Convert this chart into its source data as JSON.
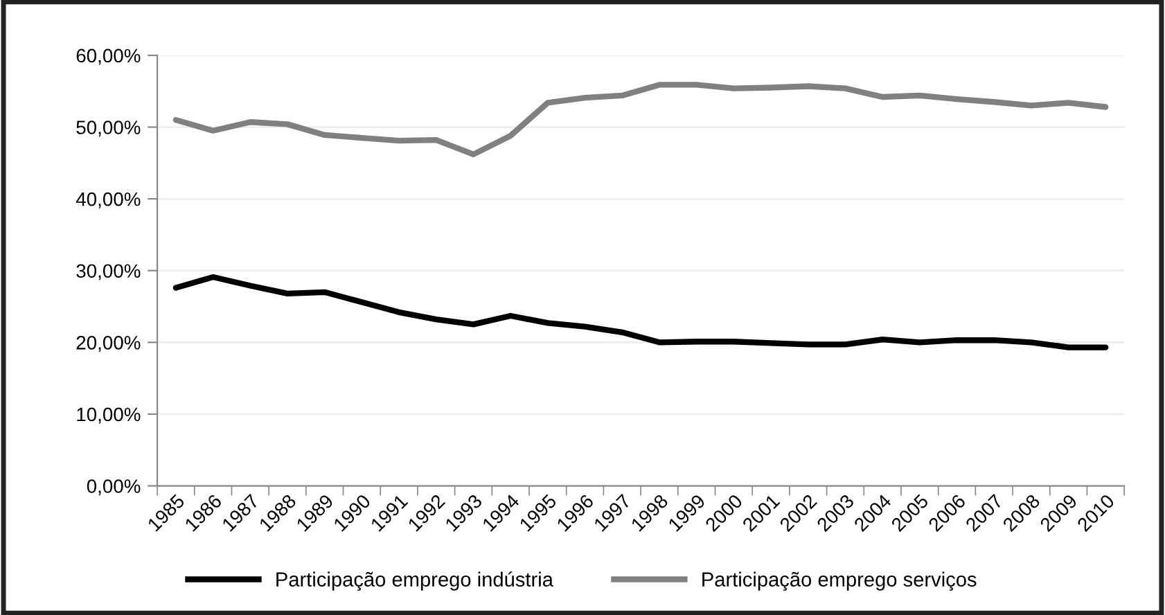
{
  "chart_data": {
    "type": "line",
    "categories": [
      "1985",
      "1986",
      "1987",
      "1988",
      "1989",
      "1990",
      "1991",
      "1992",
      "1993",
      "1994",
      "1995",
      "1996",
      "1997",
      "1998",
      "1999",
      "2000",
      "2001",
      "2002",
      "2003",
      "2004",
      "2005",
      "2006",
      "2007",
      "2008",
      "2009",
      "2010"
    ],
    "series": [
      {
        "name": "Participação emprego indústria",
        "color": "#000000",
        "values": [
          27.6,
          29.1,
          27.9,
          26.8,
          27.0,
          25.6,
          24.2,
          23.2,
          22.5,
          23.7,
          22.7,
          22.2,
          21.4,
          20.0,
          20.1,
          20.1,
          19.9,
          19.7,
          19.7,
          20.4,
          20.0,
          20.3,
          20.3,
          20.0,
          19.3,
          19.3
        ]
      },
      {
        "name": "Participação emprego serviços",
        "color": "#808080",
        "values": [
          51.0,
          49.5,
          50.7,
          50.4,
          48.9,
          48.5,
          48.1,
          48.2,
          46.2,
          48.8,
          53.4,
          54.1,
          54.4,
          55.9,
          55.9,
          55.4,
          55.5,
          55.7,
          55.4,
          54.2,
          54.4,
          53.9,
          53.5,
          53.0,
          53.4,
          52.8
        ]
      }
    ],
    "ylim": [
      0,
      60
    ],
    "yticks": [
      {
        "value": 0,
        "label": "0,00%"
      },
      {
        "value": 10,
        "label": "10,00%"
      },
      {
        "value": 20,
        "label": "20,00%"
      },
      {
        "value": 30,
        "label": "30,00%"
      },
      {
        "value": 40,
        "label": "40,00%"
      },
      {
        "value": 50,
        "label": "50,00%"
      },
      {
        "value": 60,
        "label": "60,00%"
      }
    ],
    "grid": "y",
    "legend": "bottom",
    "marker": "none",
    "line_style": "solid"
  }
}
